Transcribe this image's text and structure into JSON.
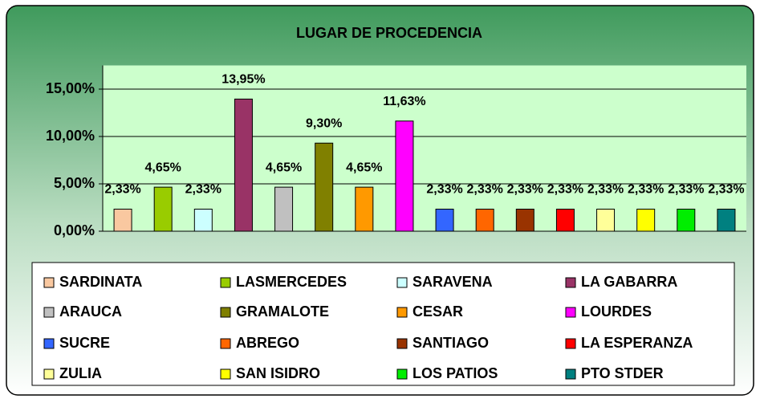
{
  "chart_data": {
    "type": "bar",
    "title": "LUGAR DE PROCEDENCIA",
    "categories": [
      "SARDINATA",
      "LASMERCEDES",
      "SARAVENA",
      "LA GABARRA",
      "ARAUCA",
      "GRAMALOTE",
      "CESAR",
      "LOURDES",
      "SUCRE",
      "ABREGO",
      "SANTIAGO",
      "LA ESPERANZA",
      "ZULIA",
      "SAN ISIDRO",
      "LOS PATIOS",
      "PTO STDER"
    ],
    "values": [
      2.33,
      4.65,
      2.33,
      13.95,
      4.65,
      9.3,
      4.65,
      11.63,
      2.33,
      2.33,
      2.33,
      2.33,
      2.33,
      2.33,
      2.33,
      2.33
    ],
    "value_labels": [
      "2,33%",
      "4,65%",
      "2,33%",
      "13,95%",
      "4,65%",
      "9,30%",
      "4,65%",
      "11,63%",
      "2,33%",
      "2,33%",
      "2,33%",
      "2,33%",
      "2,33%",
      "2,33%",
      "2,33%",
      "2,33%"
    ],
    "colors": [
      "#f9c8a0",
      "#99cc00",
      "#ccffff",
      "#993366",
      "#c0c0c0",
      "#808000",
      "#ff9900",
      "#ff00ff",
      "#3366ff",
      "#ff6600",
      "#993300",
      "#ff0000",
      "#ffff99",
      "#ffff00",
      "#00ee00",
      "#008080"
    ],
    "ylim": [
      0,
      17.5
    ],
    "yticks": [
      {
        "value": 0,
        "label": "0,00%"
      },
      {
        "value": 5,
        "label": "5,00%"
      },
      {
        "value": 10,
        "label": "10,00%"
      },
      {
        "value": 15,
        "label": "15,00%"
      }
    ],
    "grid": true,
    "legend": "bottom"
  }
}
